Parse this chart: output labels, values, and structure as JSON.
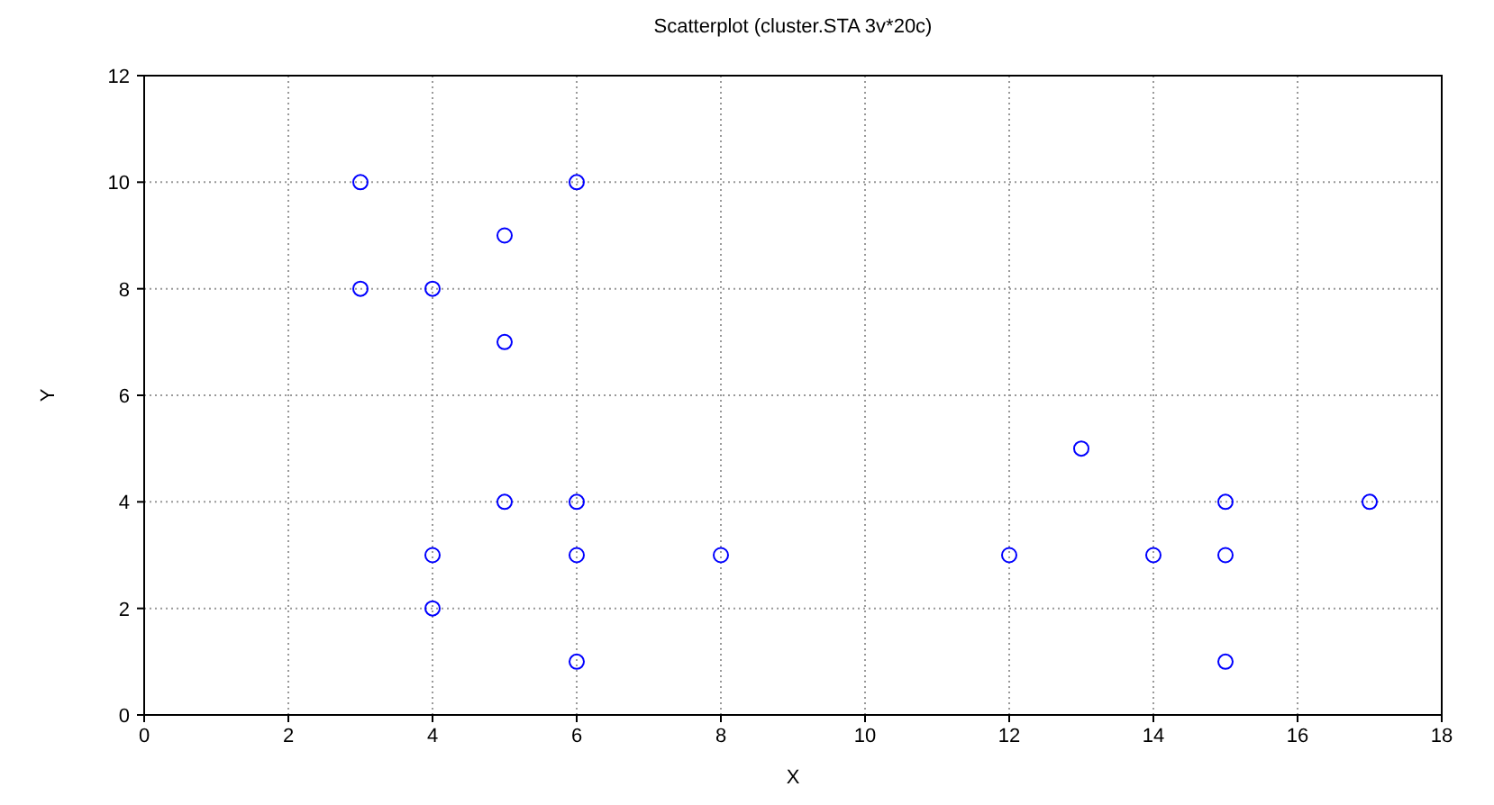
{
  "chart_data": {
    "type": "scatter",
    "title": "Scatterplot (cluster.STA 3v*20c)",
    "xlabel": "X",
    "ylabel": "Y",
    "x": [
      3,
      3,
      4,
      5,
      5,
      6,
      5,
      6,
      4,
      6,
      8,
      4,
      6,
      12,
      13,
      14,
      15,
      15,
      15,
      17
    ],
    "values": [
      10,
      8,
      8,
      9,
      7,
      10,
      4,
      4,
      3,
      3,
      3,
      2,
      1,
      3,
      5,
      3,
      4,
      3,
      1,
      4
    ],
    "color": "#0000ff",
    "marker": "circle",
    "grid": true,
    "xlim": [
      0,
      18
    ],
    "xticks": [
      0,
      2,
      4,
      6,
      8,
      10,
      12,
      14,
      16,
      18
    ],
    "ylim": [
      0,
      12
    ],
    "yticks": [
      0,
      2,
      4,
      6,
      8,
      10,
      12
    ]
  }
}
